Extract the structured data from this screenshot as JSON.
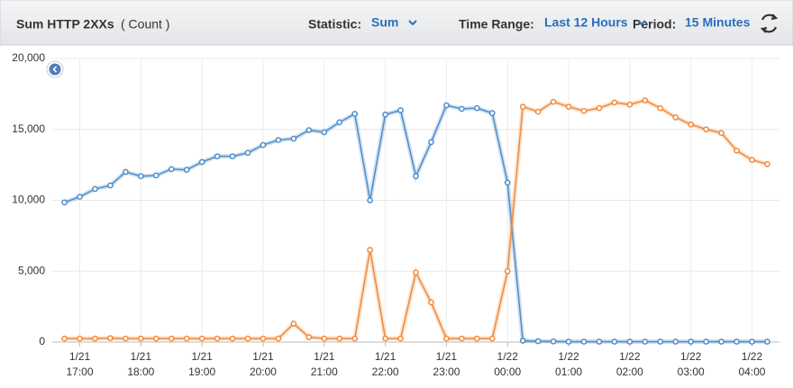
{
  "header": {
    "title": "Sum HTTP 2XXs",
    "unit": "( Count )",
    "statistic_label": "Statistic:",
    "statistic": "Sum",
    "time_range_label": "Time Range:",
    "time_range": "Last 12 Hours",
    "period_label": "Period:",
    "period": "15 Minutes"
  },
  "chart_data": {
    "type": "line",
    "x": [
      16.75,
      17,
      17.25,
      17.5,
      17.75,
      18,
      18.25,
      18.5,
      18.75,
      19,
      19.25,
      19.5,
      19.75,
      20,
      20.25,
      20.5,
      20.75,
      21,
      21.25,
      21.5,
      21.75,
      22,
      22.25,
      22.5,
      22.75,
      23,
      23.25,
      23.5,
      23.75,
      24,
      24.25,
      24.5,
      24.75,
      25,
      25.25,
      25.5,
      25.75,
      26,
      26.25,
      26.5,
      26.75,
      27,
      27.25,
      27.5,
      27.75,
      28,
      28.25
    ],
    "series": [
      {
        "color": "#4d8dc9",
        "values": [
          9850,
          10250,
          10800,
          11050,
          12000,
          11700,
          11750,
          12200,
          12150,
          12700,
          13100,
          13100,
          13350,
          13900,
          14250,
          14350,
          14950,
          14800,
          15500,
          16100,
          10000,
          16050,
          16350,
          11700,
          14100,
          16700,
          16450,
          16500,
          16150,
          11250,
          100,
          60,
          50,
          30,
          30,
          30,
          30,
          30,
          30,
          30,
          30,
          30,
          30,
          30,
          30,
          30,
          30
        ]
      },
      {
        "color": "#f08a3c",
        "values": [
          250,
          250,
          250,
          280,
          250,
          250,
          250,
          250,
          250,
          250,
          250,
          250,
          250,
          250,
          250,
          1300,
          350,
          250,
          250,
          250,
          6500,
          250,
          250,
          4900,
          2800,
          250,
          250,
          250,
          250,
          5000,
          16600,
          16250,
          16950,
          16600,
          16300,
          16500,
          16900,
          16750,
          17050,
          16500,
          15850,
          15350,
          15000,
          14750,
          13500,
          12850,
          12550
        ]
      }
    ],
    "xlim": [
      16.55,
      28.45
    ],
    "xticks": [
      {
        "value": 17,
        "label": [
          "1/21",
          "17:00"
        ]
      },
      {
        "value": 18,
        "label": [
          "1/21",
          "18:00"
        ]
      },
      {
        "value": 19,
        "label": [
          "1/21",
          "19:00"
        ]
      },
      {
        "value": 20,
        "label": [
          "1/21",
          "20:00"
        ]
      },
      {
        "value": 21,
        "label": [
          "1/21",
          "21:00"
        ]
      },
      {
        "value": 22,
        "label": [
          "1/21",
          "22:00"
        ]
      },
      {
        "value": 23,
        "label": [
          "1/21",
          "23:00"
        ]
      },
      {
        "value": 24,
        "label": [
          "1/22",
          "00:00"
        ]
      },
      {
        "value": 25,
        "label": [
          "1/22",
          "01:00"
        ]
      },
      {
        "value": 26,
        "label": [
          "1/22",
          "02:00"
        ]
      },
      {
        "value": 27,
        "label": [
          "1/22",
          "03:00"
        ]
      },
      {
        "value": 28,
        "label": [
          "1/22",
          "04:00"
        ]
      }
    ],
    "ylim": [
      0,
      20000
    ],
    "yticks": [
      0,
      {
        "value": 5000,
        "label": "5,000"
      },
      {
        "value": 10000,
        "label": "10,000"
      },
      {
        "value": 15000,
        "label": "15,000"
      },
      {
        "value": 20000,
        "label": "20,000"
      }
    ],
    "grid": true
  }
}
